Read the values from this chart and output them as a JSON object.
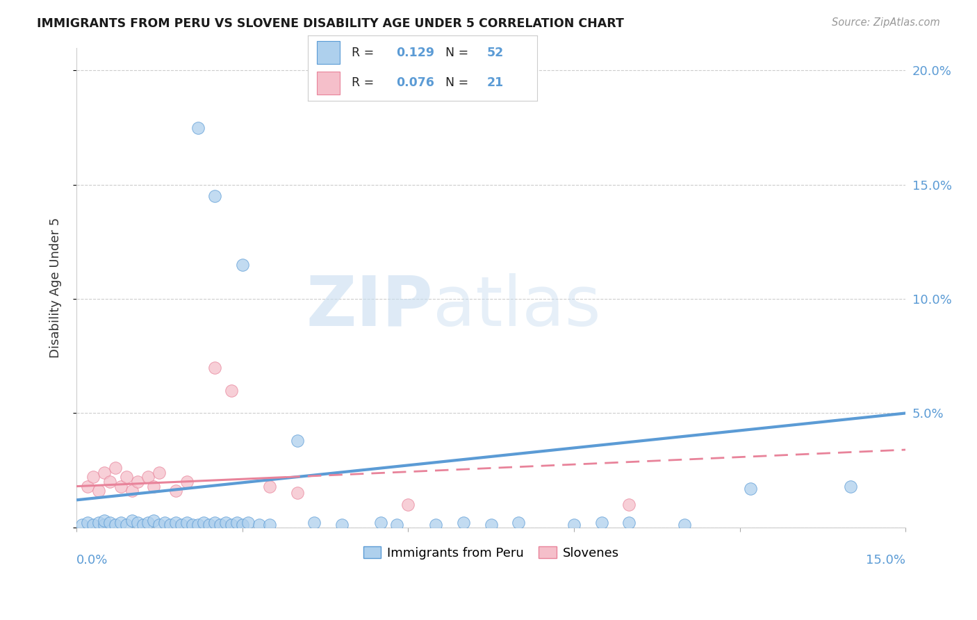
{
  "title": "IMMIGRANTS FROM PERU VS SLOVENE DISABILITY AGE UNDER 5 CORRELATION CHART",
  "source": "Source: ZipAtlas.com",
  "ylabel": "Disability Age Under 5",
  "xlim": [
    0.0,
    0.15
  ],
  "ylim": [
    0.0,
    0.21
  ],
  "yticks": [
    0.0,
    0.05,
    0.1,
    0.15,
    0.2
  ],
  "ytick_labels": [
    "",
    "5.0%",
    "10.0%",
    "15.0%",
    "20.0%"
  ],
  "xticks": [
    0.0,
    0.03,
    0.06,
    0.09,
    0.12,
    0.15
  ],
  "watermark_zip": "ZIP",
  "watermark_atlas": "atlas",
  "blue_color": "#5b9bd5",
  "pink_color": "#e8839a",
  "blue_scatter_color": "#aed0ed",
  "pink_scatter_color": "#f5bfca",
  "blue_legend_R": "0.129",
  "blue_legend_N": "52",
  "pink_legend_R": "0.076",
  "pink_legend_N": "21",
  "peru_points": [
    [
      0.001,
      0.001
    ],
    [
      0.002,
      0.002
    ],
    [
      0.003,
      0.001
    ],
    [
      0.004,
      0.002
    ],
    [
      0.005,
      0.001
    ],
    [
      0.005,
      0.003
    ],
    [
      0.006,
      0.002
    ],
    [
      0.007,
      0.001
    ],
    [
      0.008,
      0.002
    ],
    [
      0.009,
      0.001
    ],
    [
      0.01,
      0.003
    ],
    [
      0.011,
      0.002
    ],
    [
      0.012,
      0.001
    ],
    [
      0.013,
      0.002
    ],
    [
      0.014,
      0.003
    ],
    [
      0.015,
      0.001
    ],
    [
      0.016,
      0.002
    ],
    [
      0.017,
      0.001
    ],
    [
      0.018,
      0.002
    ],
    [
      0.019,
      0.001
    ],
    [
      0.02,
      0.002
    ],
    [
      0.021,
      0.001
    ],
    [
      0.022,
      0.001
    ],
    [
      0.023,
      0.002
    ],
    [
      0.024,
      0.001
    ],
    [
      0.025,
      0.002
    ],
    [
      0.026,
      0.001
    ],
    [
      0.027,
      0.002
    ],
    [
      0.028,
      0.001
    ],
    [
      0.029,
      0.002
    ],
    [
      0.03,
      0.001
    ],
    [
      0.031,
      0.002
    ],
    [
      0.033,
      0.001
    ],
    [
      0.035,
      0.001
    ],
    [
      0.022,
      0.175
    ],
    [
      0.025,
      0.145
    ],
    [
      0.03,
      0.115
    ],
    [
      0.04,
      0.038
    ],
    [
      0.043,
      0.002
    ],
    [
      0.048,
      0.001
    ],
    [
      0.055,
      0.002
    ],
    [
      0.058,
      0.001
    ],
    [
      0.065,
      0.001
    ],
    [
      0.07,
      0.002
    ],
    [
      0.075,
      0.001
    ],
    [
      0.08,
      0.002
    ],
    [
      0.09,
      0.001
    ],
    [
      0.095,
      0.002
    ],
    [
      0.1,
      0.002
    ],
    [
      0.11,
      0.001
    ],
    [
      0.122,
      0.017
    ],
    [
      0.14,
      0.018
    ]
  ],
  "slovene_points": [
    [
      0.002,
      0.018
    ],
    [
      0.003,
      0.022
    ],
    [
      0.004,
      0.016
    ],
    [
      0.005,
      0.024
    ],
    [
      0.006,
      0.02
    ],
    [
      0.007,
      0.026
    ],
    [
      0.008,
      0.018
    ],
    [
      0.009,
      0.022
    ],
    [
      0.01,
      0.016
    ],
    [
      0.011,
      0.02
    ],
    [
      0.013,
      0.022
    ],
    [
      0.014,
      0.018
    ],
    [
      0.015,
      0.024
    ],
    [
      0.018,
      0.016
    ],
    [
      0.02,
      0.02
    ],
    [
      0.025,
      0.07
    ],
    [
      0.028,
      0.06
    ],
    [
      0.035,
      0.018
    ],
    [
      0.04,
      0.015
    ],
    [
      0.06,
      0.01
    ],
    [
      0.1,
      0.01
    ]
  ],
  "blue_line": [
    0.0,
    0.012,
    0.15,
    0.05
  ],
  "pink_line_solid": [
    0.0,
    0.018,
    0.038,
    0.022
  ],
  "pink_line_dash": [
    0.038,
    0.022,
    0.15,
    0.034
  ]
}
